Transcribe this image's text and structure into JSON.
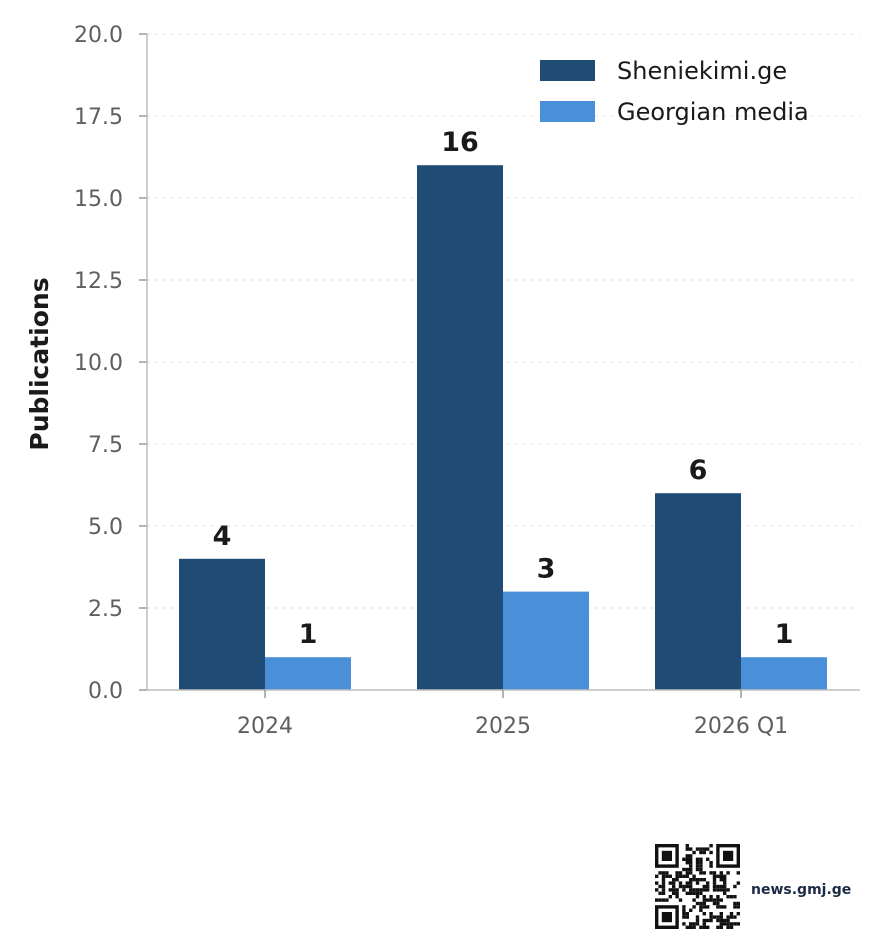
{
  "chart_data": {
    "type": "bar",
    "categories": [
      "2024",
      "2025",
      "2026 Q1"
    ],
    "series": [
      {
        "name": "Sheniekimi.ge",
        "values": [
          4,
          16,
          6
        ],
        "color": "#204b74"
      },
      {
        "name": "Georgian media",
        "values": [
          1,
          3,
          1
        ],
        "color": "#4a90d9"
      }
    ],
    "ylabel": "Publications",
    "xlabel": "",
    "ylim": [
      0,
      20
    ],
    "yticks": [
      "0.0",
      "2.5",
      "5.0",
      "7.5",
      "10.0",
      "12.5",
      "15.0",
      "17.5",
      "20.0"
    ],
    "grid": "horizontal dotted",
    "legend_position": "top-right"
  },
  "footer": {
    "site": "news.gmj.ge",
    "qr_icon": "qr-code-icon"
  }
}
